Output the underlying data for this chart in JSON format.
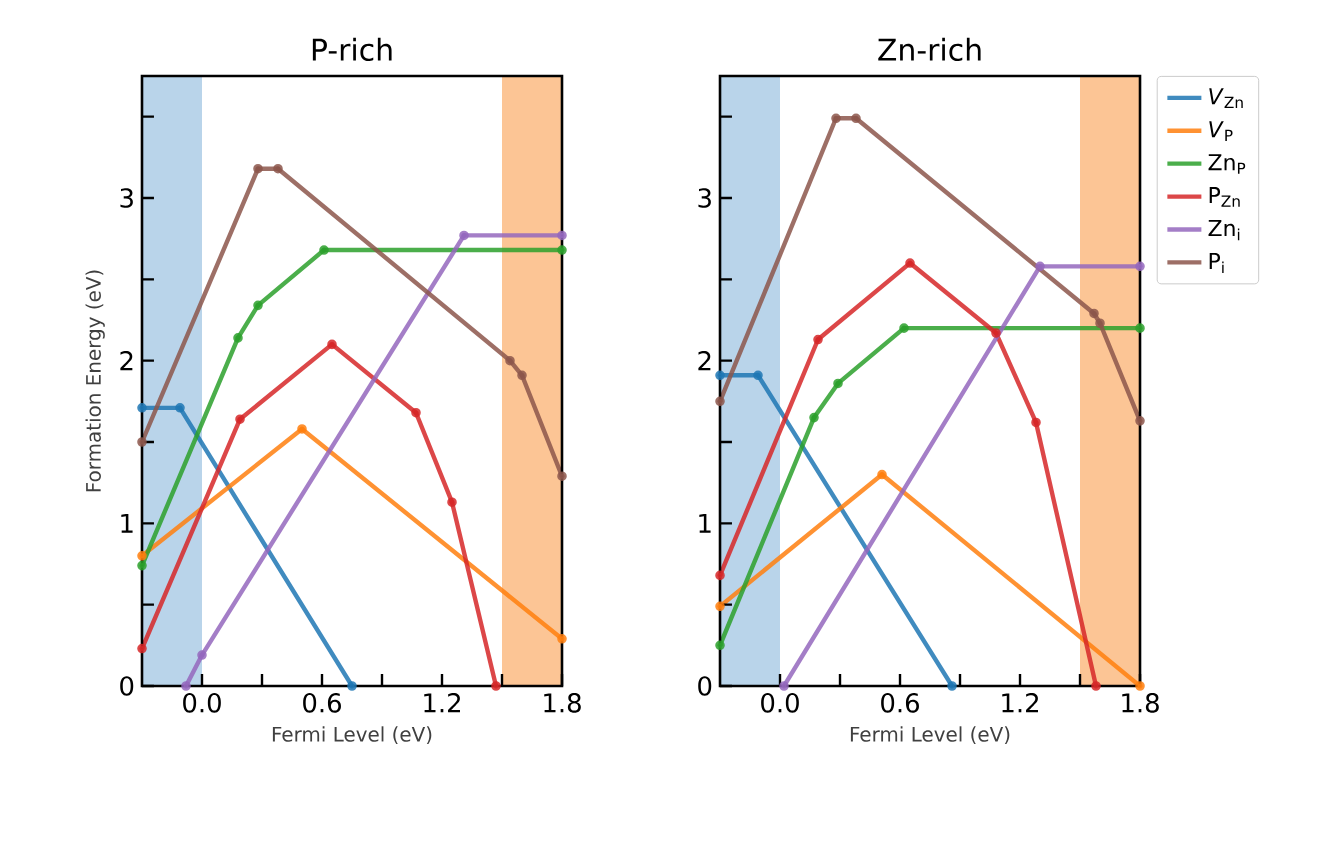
{
  "chart_data": [
    {
      "type": "line",
      "title": "P-rich",
      "xlabel": "Fermi Level (eV)",
      "ylabel": "Formation Energy (eV)",
      "xlim": [
        -0.3,
        1.8
      ],
      "ylim": [
        0,
        3.75
      ],
      "xticks": [
        {
          "value": 0,
          "label": "0.0"
        },
        {
          "value": 0.3,
          "label": null
        },
        {
          "value": 0.6,
          "label": "0.6"
        },
        {
          "value": 0.9,
          "label": null
        },
        {
          "value": 1.2,
          "label": "1.2"
        },
        {
          "value": 1.5,
          "label": null
        },
        {
          "value": 1.8,
          "label": "1.8"
        }
      ],
      "yticks": [
        0,
        {
          "value": 0.5,
          "label": null
        },
        1,
        {
          "value": 1.5,
          "label": null
        },
        2,
        {
          "value": 2.5,
          "label": null
        },
        3,
        {
          "value": 3.5,
          "label": null
        }
      ],
      "marker": "circle",
      "legend": false,
      "bands": [
        {
          "axis": "x",
          "from": -0.3,
          "to": 0,
          "color": "#b9d4ea"
        },
        {
          "axis": "x",
          "from": 1.5,
          "to": 1.8,
          "color": "#fcc595"
        }
      ],
      "series": [
        {
          "color": "#1f77b4",
          "x": [
            -0.3,
            -0.11,
            0.75
          ],
          "values": [
            1.71,
            1.71,
            0
          ]
        },
        {
          "color": "#ff7f0e",
          "x": [
            -0.3,
            0.5,
            1.8
          ],
          "values": [
            0.8,
            1.58,
            0.29
          ]
        },
        {
          "color": "#2ca02c",
          "x": [
            -0.3,
            0.18,
            0.28,
            0.61,
            1.8
          ],
          "values": [
            0.74,
            2.14,
            2.34,
            2.68,
            2.68
          ]
        },
        {
          "color": "#d62728",
          "x": [
            -0.3,
            0.19,
            0.65,
            1.07,
            1.25,
            1.47
          ],
          "values": [
            0.23,
            1.64,
            2.1,
            1.68,
            1.13,
            0
          ]
        },
        {
          "color": "#9467bd",
          "x": [
            -0.08,
            0,
            1.31,
            1.8
          ],
          "values": [
            0,
            0.19,
            2.77,
            2.77
          ]
        },
        {
          "color": "#8c564b",
          "x": [
            -0.3,
            0.28,
            0.38,
            1.54,
            1.6,
            1.8
          ],
          "values": [
            1.5,
            3.18,
            3.18,
            2.0,
            1.91,
            1.29
          ]
        }
      ]
    },
    {
      "type": "line",
      "title": "Zn-rich",
      "xlabel": "Fermi Level (eV)",
      "xlim": [
        -0.3,
        1.8
      ],
      "ylim": [
        0,
        3.75
      ],
      "xticks": [
        {
          "value": 0,
          "label": "0.0"
        },
        {
          "value": 0.3,
          "label": null
        },
        {
          "value": 0.6,
          "label": "0.6"
        },
        {
          "value": 0.9,
          "label": null
        },
        {
          "value": 1.2,
          "label": "1.2"
        },
        {
          "value": 1.5,
          "label": null
        },
        {
          "value": 1.8,
          "label": "1.8"
        }
      ],
      "yticks": [
        0,
        {
          "value": 0.5,
          "label": null
        },
        1,
        {
          "value": 1.5,
          "label": null
        },
        2,
        {
          "value": 2.5,
          "label": null
        },
        3,
        {
          "value": 3.5,
          "label": null
        }
      ],
      "marker": "circle",
      "legend": "right",
      "bands": [
        {
          "axis": "x",
          "from": -0.3,
          "to": 0,
          "color": "#b9d4ea"
        },
        {
          "axis": "x",
          "from": 1.5,
          "to": 1.8,
          "color": "#fcc595"
        }
      ],
      "series": [
        {
          "name": "*V*$_{Zn}$",
          "color": "#1f77b4",
          "x": [
            -0.3,
            -0.11,
            0.86
          ],
          "values": [
            1.91,
            1.91,
            0
          ]
        },
        {
          "name": "*V*$_{P}$",
          "color": "#ff7f0e",
          "x": [
            -0.3,
            0.51,
            1.8
          ],
          "values": [
            0.49,
            1.3,
            0
          ]
        },
        {
          "name": "Zn$_{P}$",
          "color": "#2ca02c",
          "x": [
            -0.3,
            0.17,
            0.29,
            0.62,
            1.8
          ],
          "values": [
            0.25,
            1.65,
            1.86,
            2.2,
            2.2
          ]
        },
        {
          "name": "P$_{Zn}$",
          "color": "#d62728",
          "x": [
            -0.3,
            0.19,
            0.65,
            1.08,
            1.28,
            1.58
          ],
          "values": [
            0.68,
            2.13,
            2.6,
            2.17,
            1.62,
            0
          ]
        },
        {
          "name": "Zn$_{i}$",
          "color": "#9467bd",
          "x": [
            0.02,
            1.3,
            1.8
          ],
          "values": [
            0,
            2.58,
            2.58
          ]
        },
        {
          "name": "P$_{i}$",
          "color": "#8c564b",
          "x": [
            -0.3,
            0.28,
            0.38,
            1.57,
            1.6,
            1.8
          ],
          "values": [
            1.75,
            3.49,
            3.49,
            2.29,
            2.23,
            1.63
          ]
        }
      ]
    }
  ]
}
